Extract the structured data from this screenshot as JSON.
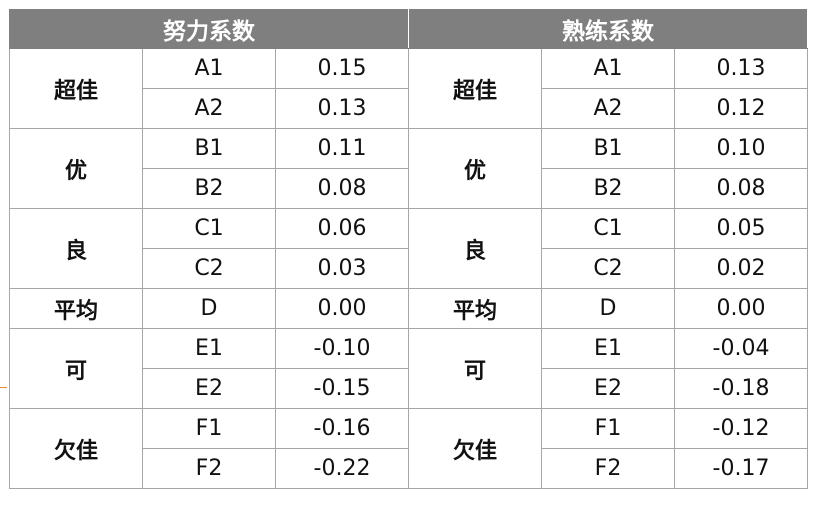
{
  "sections": [
    {
      "title": "努力系数",
      "rows": [
        {
          "grade": "超佳",
          "items": [
            [
              "A1",
              "0.15"
            ],
            [
              "A2",
              "0.13"
            ]
          ]
        },
        {
          "grade": "优",
          "items": [
            [
              "B1",
              "0.11"
            ],
            [
              "B2",
              "0.08"
            ]
          ]
        },
        {
          "grade": "良",
          "items": [
            [
              "C1",
              "0.06"
            ],
            [
              "C2",
              "0.03"
            ]
          ]
        },
        {
          "grade": "平均",
          "items": [
            [
              "D",
              "0.00"
            ]
          ]
        },
        {
          "grade": "可",
          "items": [
            [
              "E1",
              "-0.10"
            ],
            [
              "E2",
              "-0.15"
            ]
          ]
        },
        {
          "grade": "欠佳",
          "items": [
            [
              "F1",
              "-0.16"
            ],
            [
              "F2",
              "-0.22"
            ]
          ]
        }
      ]
    },
    {
      "title": "熟练系数",
      "rows": [
        {
          "grade": "超佳",
          "items": [
            [
              "A1",
              "0.13"
            ],
            [
              "A2",
              "0.12"
            ]
          ]
        },
        {
          "grade": "优",
          "items": [
            [
              "B1",
              "0.10"
            ],
            [
              "B2",
              "0.08"
            ]
          ]
        },
        {
          "grade": "良",
          "items": [
            [
              "C1",
              "0.05"
            ],
            [
              "C2",
              "0.02"
            ]
          ]
        },
        {
          "grade": "平均",
          "items": [
            [
              "D",
              "0.00"
            ]
          ]
        },
        {
          "grade": "可",
          "items": [
            [
              "E1",
              "-0.04"
            ],
            [
              "E2",
              "-0.18"
            ]
          ]
        },
        {
          "grade": "欠佳",
          "items": [
            [
              "F1",
              "-0.12"
            ],
            [
              "F2",
              "-0.17"
            ]
          ]
        }
      ]
    }
  ]
}
